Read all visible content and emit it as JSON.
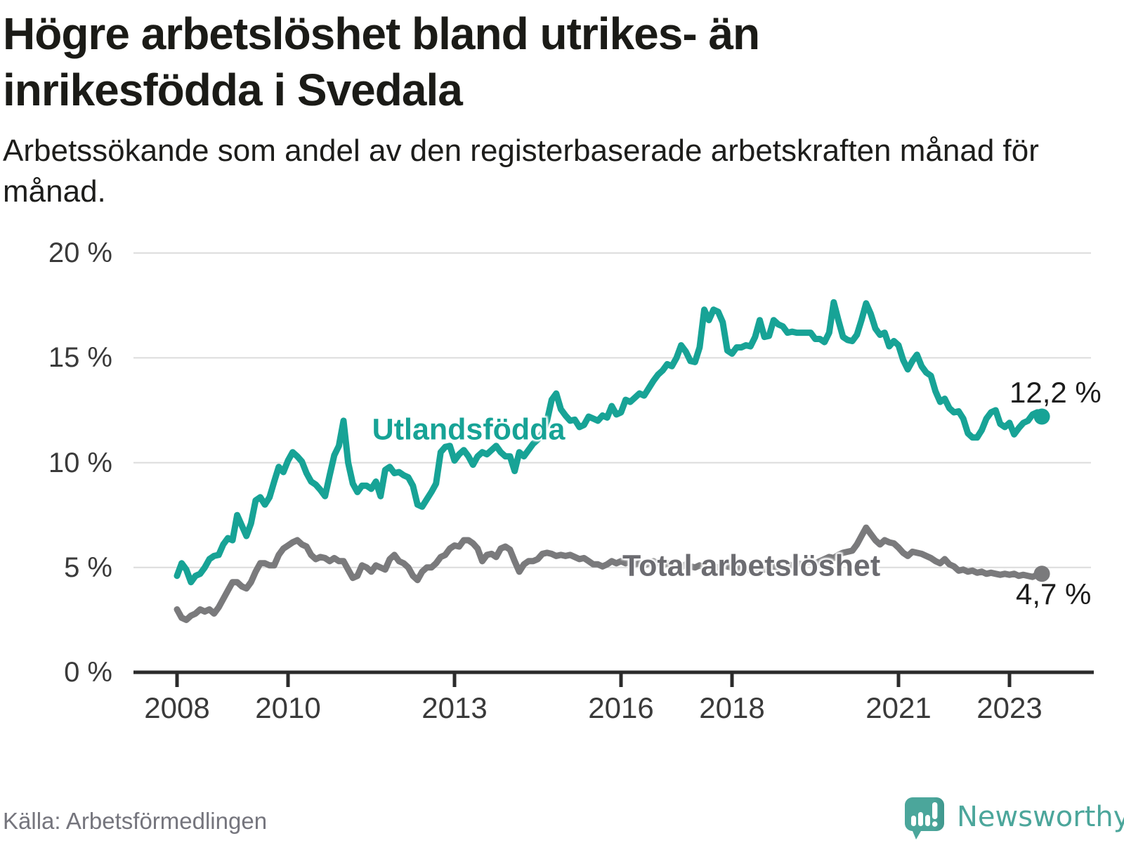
{
  "header": {
    "title": "Högre arbetslöshet bland utrikes- än inrikesfödda i Svedala",
    "subtitle": "Arbetssökande som andel av den registerbaserade arbetskraften månad för månad."
  },
  "footer": {
    "source": "Källa: Arbetsförmedlingen",
    "brand": "Newsworthy"
  },
  "colors": {
    "teal": "#17a396",
    "gray_line": "#7a7a7c",
    "gray_label": "#6c6c71",
    "grid": "#dcdcdc",
    "axis": "#2b2b2b",
    "tick_text": "#3a3a3a",
    "value_text": "#1c1c1c",
    "brand_teal": "#4ca69b"
  },
  "chart_data": {
    "type": "line",
    "title": "Högre arbetslöshet bland utrikes- än inrikesfödda i Svedala",
    "subtitle": "Arbetssökande som andel av den registerbaserade arbetskraften månad för månad.",
    "x_start": "2008-01",
    "x_frequency": "monthly",
    "x_end": "2023-08",
    "xlabel": "",
    "ylabel": "",
    "ylim": [
      0,
      20.8
    ],
    "grid": "horizontal",
    "legend": "inline-labels",
    "y_ticks": [
      {
        "value": 20,
        "label": "20 %"
      },
      {
        "value": 15,
        "label": "15 %"
      },
      {
        "value": 10,
        "label": "10 %"
      },
      {
        "value": 5,
        "label": "5 %"
      },
      {
        "value": 0,
        "label": "0 %"
      }
    ],
    "x_ticks": [
      {
        "year": 2008,
        "label": "2008"
      },
      {
        "year": 2010,
        "label": "2010"
      },
      {
        "year": 2013,
        "label": "2013"
      },
      {
        "year": 2016,
        "label": "2016"
      },
      {
        "year": 2018,
        "label": "2018"
      },
      {
        "year": 2021,
        "label": "2021"
      },
      {
        "year": 2023,
        "label": "2023"
      }
    ],
    "series": [
      {
        "name": "Utlandsfödda",
        "color": "#17a396",
        "end_label": "12,2 %",
        "end_value": 12.2,
        "values": [
          4.6,
          5.2,
          4.9,
          4.3,
          4.6,
          4.7,
          5.0,
          5.4,
          5.55,
          5.6,
          6.1,
          6.4,
          6.3,
          7.5,
          7.0,
          6.5,
          7.1,
          8.2,
          8.35,
          8.0,
          8.35,
          9.1,
          9.8,
          9.55,
          10.1,
          10.5,
          10.3,
          10.05,
          9.5,
          9.1,
          8.95,
          8.7,
          8.4,
          9.4,
          10.35,
          10.8,
          12.0,
          10.0,
          9.0,
          8.6,
          8.9,
          8.9,
          8.75,
          9.1,
          8.4,
          9.65,
          9.8,
          9.5,
          9.55,
          9.4,
          9.3,
          8.9,
          8.0,
          7.9,
          8.25,
          8.6,
          9.0,
          10.5,
          10.75,
          10.8,
          10.1,
          10.4,
          10.6,
          10.3,
          9.9,
          10.3,
          10.5,
          10.4,
          10.6,
          10.8,
          10.5,
          10.3,
          10.3,
          9.6,
          10.5,
          10.3,
          10.6,
          10.9,
          11.1,
          11.4,
          12.0,
          13.0,
          13.3,
          12.55,
          12.25,
          12.0,
          12.05,
          11.7,
          11.8,
          12.2,
          12.1,
          12.0,
          12.25,
          12.15,
          12.7,
          12.3,
          12.4,
          13.0,
          12.9,
          13.1,
          13.3,
          13.2,
          13.55,
          13.9,
          14.2,
          14.4,
          14.7,
          14.6,
          15.0,
          15.6,
          15.3,
          14.85,
          14.8,
          15.5,
          17.3,
          16.8,
          17.3,
          17.2,
          16.7,
          15.35,
          15.2,
          15.5,
          15.5,
          15.6,
          15.55,
          16.0,
          16.8,
          16.0,
          16.05,
          16.8,
          16.6,
          16.5,
          16.2,
          16.25,
          16.2,
          16.2,
          16.2,
          16.2,
          15.9,
          15.9,
          15.75,
          16.2,
          17.65,
          16.8,
          16.0,
          15.85,
          15.8,
          16.1,
          16.8,
          17.6,
          17.1,
          16.4,
          16.1,
          16.2,
          15.55,
          15.8,
          15.6,
          14.9,
          14.45,
          14.85,
          15.15,
          14.6,
          14.3,
          14.15,
          13.4,
          12.9,
          13.05,
          12.6,
          12.4,
          12.45,
          12.1,
          11.4,
          11.2,
          11.2,
          11.55,
          12.1,
          12.4,
          12.5,
          11.85,
          11.7,
          11.9,
          11.35,
          11.65,
          11.9,
          12.0,
          12.3,
          12.4,
          12.2
        ]
      },
      {
        "name": "Total arbetslöshet",
        "color": "#7a7a7c",
        "end_label": "4,7 %",
        "end_value": 4.7,
        "values": [
          3.0,
          2.6,
          2.5,
          2.7,
          2.8,
          3.0,
          2.9,
          3.0,
          2.8,
          3.1,
          3.5,
          3.9,
          4.3,
          4.3,
          4.1,
          4.0,
          4.3,
          4.8,
          5.2,
          5.2,
          5.1,
          5.1,
          5.6,
          5.9,
          6.05,
          6.2,
          6.3,
          6.1,
          6.0,
          5.6,
          5.4,
          5.5,
          5.45,
          5.3,
          5.45,
          5.3,
          5.3,
          4.9,
          4.5,
          4.6,
          5.1,
          5.0,
          4.8,
          5.1,
          5.0,
          4.9,
          5.4,
          5.6,
          5.3,
          5.2,
          5.0,
          4.6,
          4.4,
          4.8,
          5.0,
          5.0,
          5.2,
          5.5,
          5.6,
          5.9,
          6.05,
          6.0,
          6.3,
          6.3,
          6.15,
          5.9,
          5.3,
          5.6,
          5.65,
          5.5,
          5.9,
          6.0,
          5.85,
          5.3,
          4.8,
          5.15,
          5.3,
          5.3,
          5.4,
          5.65,
          5.7,
          5.65,
          5.55,
          5.6,
          5.55,
          5.6,
          5.5,
          5.4,
          5.45,
          5.3,
          5.15,
          5.15,
          5.05,
          5.15,
          5.3,
          5.2,
          5.3,
          5.2,
          5.3,
          5.15,
          5.2,
          5.1,
          5.2,
          5.3,
          5.2,
          5.1,
          5.2,
          5.15,
          5.1,
          5.0,
          5.15,
          5.05,
          5.0,
          5.1,
          5.0,
          4.95,
          5.05,
          5.0,
          5.1,
          5.05,
          5.0,
          4.9,
          5.0,
          4.95,
          4.85,
          4.95,
          5.0,
          4.9,
          5.0,
          5.05,
          5.0,
          5.1,
          5.15,
          5.1,
          5.2,
          5.15,
          5.25,
          5.3,
          5.2,
          5.3,
          5.4,
          5.5,
          5.45,
          5.6,
          5.7,
          5.75,
          5.8,
          6.1,
          6.5,
          6.9,
          6.6,
          6.3,
          6.1,
          6.3,
          6.2,
          6.15,
          5.95,
          5.7,
          5.55,
          5.75,
          5.7,
          5.65,
          5.55,
          5.45,
          5.3,
          5.2,
          5.4,
          5.15,
          5.05,
          4.85,
          4.9,
          4.8,
          4.85,
          4.75,
          4.8,
          4.7,
          4.75,
          4.7,
          4.65,
          4.7,
          4.65,
          4.7,
          4.6,
          4.65,
          4.6,
          4.55,
          4.65,
          4.7
        ]
      }
    ]
  }
}
